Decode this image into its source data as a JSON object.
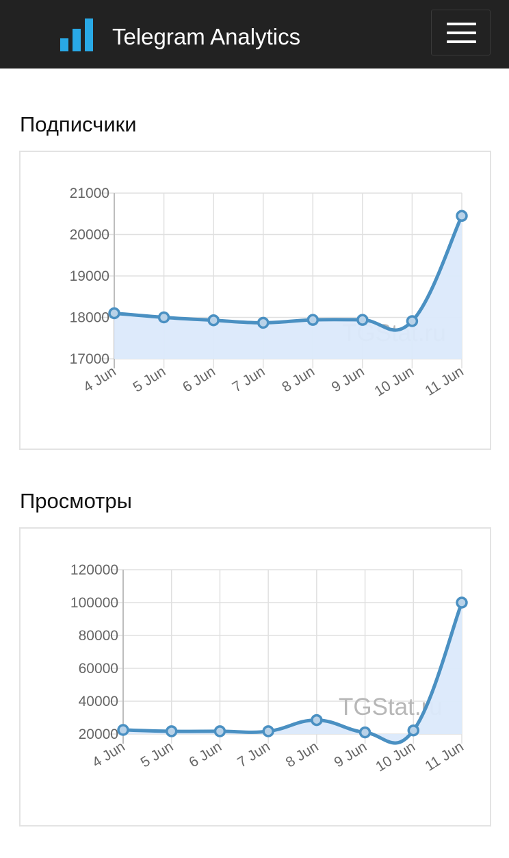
{
  "navbar": {
    "title": "Telegram Analytics",
    "logo_icon": "bar-chart-icon",
    "menu_icon": "hamburger-menu-icon",
    "logo_color": "#29a9e6"
  },
  "sections": [
    {
      "title": "Подписчики"
    },
    {
      "title": "Просмотры"
    }
  ],
  "colors": {
    "line": "#4a90c2",
    "fill": "#dbe9fb",
    "grid": "#e0e0e0",
    "point_fill": "#b9d2e8"
  },
  "chart_data": [
    {
      "type": "area",
      "categories": [
        "4 Jun",
        "5 Jun",
        "6 Jun",
        "7 Jun",
        "8 Jun",
        "9 Jun",
        "10 Jun",
        "11 Jun"
      ],
      "series": [
        {
          "values": [
            18100,
            18000,
            17930,
            17870,
            17940,
            17940,
            17910,
            20450
          ]
        }
      ],
      "yticks": [
        "17000",
        "18000",
        "19000",
        "20000",
        "21000"
      ],
      "ylim": [
        17000,
        21000
      ],
      "watermark": "TGStat.ru",
      "grid": true
    },
    {
      "type": "area",
      "categories": [
        "4 Jun",
        "5 Jun",
        "6 Jun",
        "7 Jun",
        "8 Jun",
        "9 Jun",
        "10 Jun",
        "11 Jun"
      ],
      "series": [
        {
          "values": [
            22500,
            21700,
            21700,
            21700,
            28500,
            21000,
            22200,
            100000
          ]
        }
      ],
      "yticks": [
        "20000",
        "40000",
        "60000",
        "80000",
        "100000",
        "120000"
      ],
      "ylim": [
        20000,
        120000
      ],
      "watermark": "TGStat.ru",
      "grid": true
    }
  ]
}
